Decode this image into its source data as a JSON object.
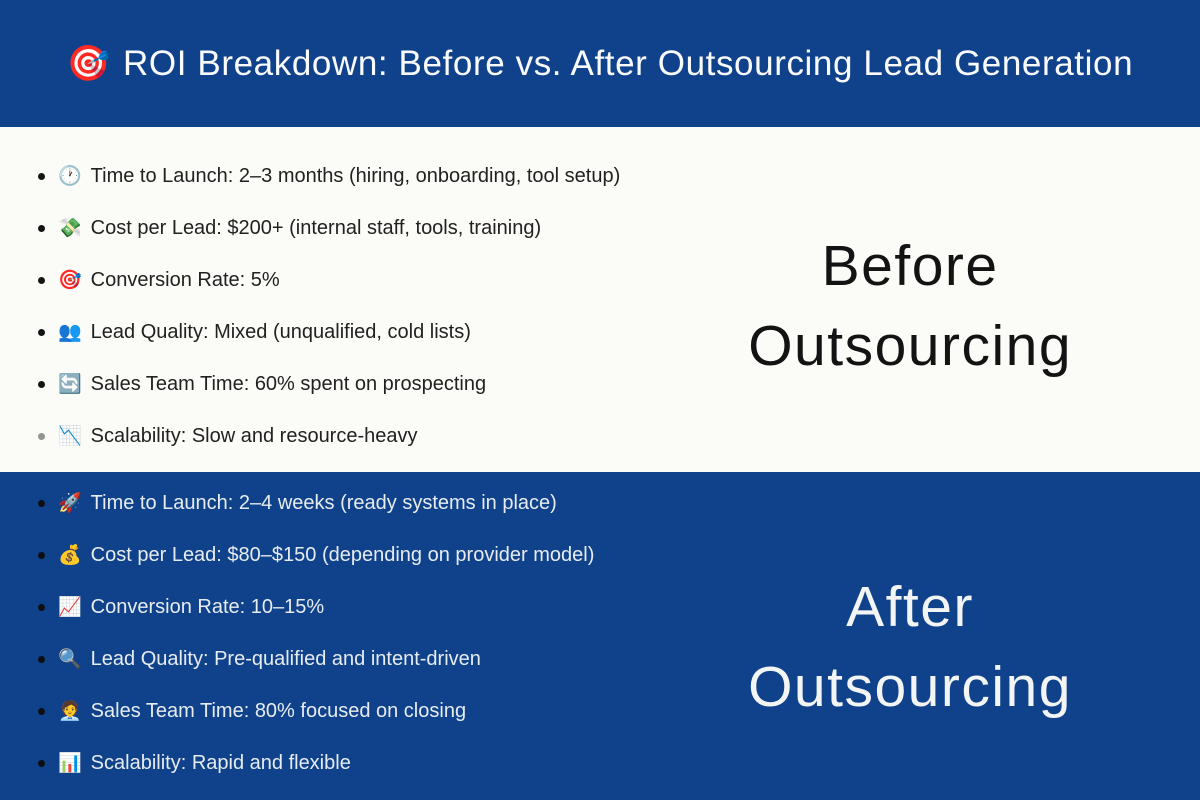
{
  "header": {
    "icon": "🎯",
    "title": "ROI Breakdown: Before vs. After Outsourcing Lead Generation"
  },
  "colors": {
    "brand_blue": "#10428C",
    "light_background": "#FBFCF8",
    "dark_text": "#212121",
    "light_text": "#E7ECEF"
  },
  "sections": {
    "before": {
      "label_line1": "Before",
      "label_line2": "Outsourcing",
      "items": [
        {
          "icon": "clock-icon",
          "emoji": "🕐",
          "text": "Time to Launch: 2–3 months (hiring, onboarding, tool setup)"
        },
        {
          "icon": "money-wings-icon",
          "emoji": "💸",
          "text": "Cost per Lead: $200+ (internal staff, tools, training)"
        },
        {
          "icon": "target-icon",
          "emoji": "🎯",
          "text": "Conversion Rate: 5%"
        },
        {
          "icon": "people-icon",
          "emoji": "👥",
          "text": "Lead Quality: Mixed (unqualified, cold lists)"
        },
        {
          "icon": "repeat-arrows-icon",
          "emoji": "🔄",
          "text": "Sales Team Time: 60% spent on prospecting"
        },
        {
          "icon": "chart-down-icon",
          "emoji": "📉",
          "text": "Scalability: Slow and resource-heavy"
        }
      ]
    },
    "after": {
      "label_line1": "After",
      "label_line2": "Outsourcing",
      "items": [
        {
          "icon": "rocket-icon",
          "emoji": "🚀",
          "text": "Time to Launch: 2–4 weeks (ready systems in place)"
        },
        {
          "icon": "money-bag-icon",
          "emoji": "💰",
          "text": "Cost per Lead: $80–$150 (depending on provider model)"
        },
        {
          "icon": "chart-up-icon",
          "emoji": "📈",
          "text": "Conversion Rate: 10–15%"
        },
        {
          "icon": "magnifier-icon",
          "emoji": "🔍",
          "text": "Lead Quality: Pre-qualified and intent-driven"
        },
        {
          "icon": "office-worker-icon",
          "emoji": "🧑‍💼",
          "text": "Sales Team Time: 80% focused on closing"
        },
        {
          "icon": "bar-chart-icon",
          "emoji": "📊",
          "text": "Scalability: Rapid and flexible"
        }
      ]
    }
  }
}
